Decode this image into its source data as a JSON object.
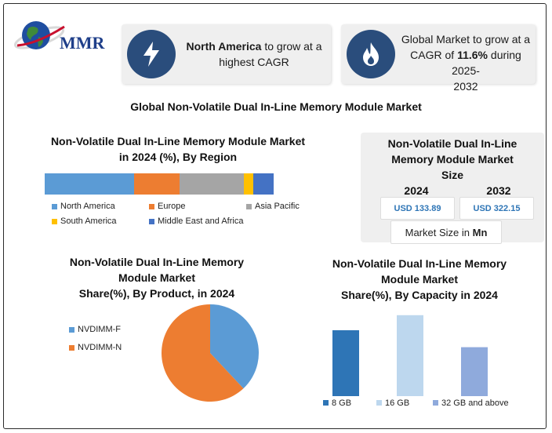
{
  "logo": {
    "text": "MMR"
  },
  "highlights": [
    {
      "bold": "North America",
      "rest1": " to grow at a",
      "rest2": "highest CAGR",
      "icon": "lightning-icon"
    },
    {
      "line1": "Global Market to grow at a",
      "line2a": "CAGR of ",
      "line2b": "11.6%",
      "line2c": " during 2025-",
      "line3": "2032",
      "icon": "flame-icon"
    }
  ],
  "main_title": "Global Non-Volatile Dual In-Line Memory Module Market",
  "market_size": {
    "title": [
      "Non-Volatile Dual In-Line",
      "Memory Module Market",
      "Size"
    ],
    "years": [
      "2024",
      "2032"
    ],
    "values": [
      "USD 133.89",
      "USD 322.15"
    ],
    "unit_prefix": "Market Size in ",
    "unit": "Mn"
  },
  "chart_data": [
    {
      "type": "bar",
      "stacked": true,
      "orientation": "horizontal",
      "title": "Non-Volatile Dual In-Line Memory Module Market in 2024 (%), By Region",
      "title_lines": [
        "Non-Volatile Dual In-Line Memory Module Market",
        "in 2024 (%), By Region"
      ],
      "series": [
        {
          "name": "North America",
          "value": 39,
          "color": "#5b9bd5"
        },
        {
          "name": "Europe",
          "value": 20,
          "color": "#ed7d31"
        },
        {
          "name": "Asia Pacific",
          "value": 28,
          "color": "#a5a5a5"
        },
        {
          "name": "South America",
          "value": 4,
          "color": "#ffc000"
        },
        {
          "name": "Middle East and Africa",
          "value": 9,
          "color": "#4472c4"
        }
      ],
      "legend_position": "bottom"
    },
    {
      "type": "pie",
      "title": "Non-Volatile Dual In-Line Memory Module Market Share(%), By Product, in 2024",
      "title_lines": [
        "Non-Volatile Dual In-Line Memory",
        "Module Market",
        "Share(%), By Product, in 2024"
      ],
      "slices": [
        {
          "name": "NVDIMM-F",
          "value": 38,
          "color": "#5b9bd5"
        },
        {
          "name": "NVDIMM-N",
          "value": 62,
          "color": "#ed7d31"
        }
      ],
      "legend_position": "left"
    },
    {
      "type": "bar",
      "title": "Non-Volatile Dual In-Line Memory Module Market Share(%), By Capacity in 2024",
      "title_lines": [
        "Non-Volatile Dual In-Line Memory",
        "Module Market",
        "Share(%), By Capacity in 2024"
      ],
      "categories": [
        "8 GB",
        "16 GB",
        "32 GB  and  above"
      ],
      "values": [
        35,
        43,
        26
      ],
      "colors": [
        "#2e75b6",
        "#bdd7ee",
        "#8faadc"
      ],
      "ylim": [
        0,
        45
      ],
      "grid": false,
      "legend_position": "bottom"
    }
  ]
}
